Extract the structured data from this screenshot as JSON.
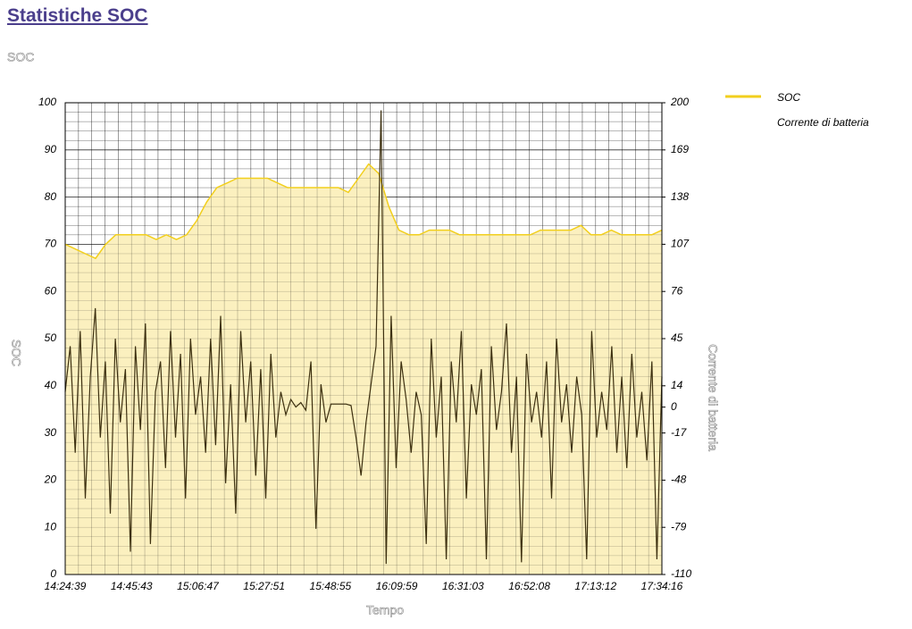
{
  "chart_data": {
    "type": "line",
    "title": "Statistiche SOC",
    "subtitle": "SOC",
    "x_label": "Tempo",
    "y_label": "SOC",
    "y2_label": "Corrente di batteria",
    "xticks": [
      "14:24:39",
      "14:45:43",
      "15:06:47",
      "15:27:51",
      "15:48:55",
      "16:09:59",
      "16:31:03",
      "16:52:08",
      "17:13:12",
      "17:34:16"
    ],
    "ylim": [
      0,
      100
    ],
    "yticks": [
      0,
      10,
      20,
      30,
      40,
      50,
      60,
      70,
      80,
      90,
      100
    ],
    "y2lim": [
      -110,
      200
    ],
    "y2ticks": [
      -110,
      -79,
      -48,
      -17,
      0,
      14,
      45,
      76,
      107,
      138,
      169,
      200
    ],
    "grid": true,
    "legend": "right",
    "series": [
      {
        "name": "SOC",
        "color": "#f2cf1d",
        "fill": "#fbf0bf",
        "values": [
          70,
          69,
          68,
          67,
          70,
          72,
          72,
          72,
          72,
          71,
          72,
          71,
          72,
          75,
          79,
          82,
          83,
          84,
          84,
          84,
          84,
          83,
          82,
          82,
          82,
          82,
          82,
          82,
          81,
          84,
          87,
          85,
          78,
          73,
          72,
          72,
          73,
          73,
          73,
          72,
          72,
          72,
          72,
          72,
          72,
          72,
          72,
          73,
          73,
          73,
          73,
          74,
          72,
          72,
          73,
          72,
          72,
          72,
          72,
          73
        ]
      },
      {
        "name": "Corrente di batteria",
        "color": "#3d3010",
        "axis": "y2",
        "values": [
          10,
          40,
          -30,
          50,
          -60,
          20,
          65,
          -20,
          30,
          -70,
          45,
          -10,
          25,
          -95,
          40,
          -15,
          55,
          -90,
          10,
          30,
          -40,
          50,
          -20,
          35,
          -60,
          45,
          -5,
          20,
          -30,
          45,
          -25,
          60,
          -50,
          15,
          -70,
          50,
          -10,
          30,
          -45,
          25,
          -60,
          35,
          -20,
          10,
          -5,
          5,
          0,
          3,
          -2,
          30,
          -80,
          15,
          -10,
          2,
          2,
          2,
          2,
          1,
          -20,
          -45,
          -10,
          15,
          40,
          195,
          -103,
          60,
          -40,
          30,
          5,
          -30,
          10,
          -5,
          -90,
          45,
          -20,
          20,
          -100,
          30,
          -10,
          50,
          -60,
          15,
          -5,
          25,
          -100,
          40,
          -15,
          10,
          55,
          -30,
          20,
          -102,
          35,
          -10,
          10,
          -20,
          30,
          -60,
          45,
          -10,
          15,
          -30,
          20,
          -5,
          -100,
          50,
          -20,
          10,
          -15,
          40,
          -30,
          20,
          -40,
          35,
          -20,
          10,
          -35,
          30,
          -100,
          20
        ]
      }
    ]
  }
}
